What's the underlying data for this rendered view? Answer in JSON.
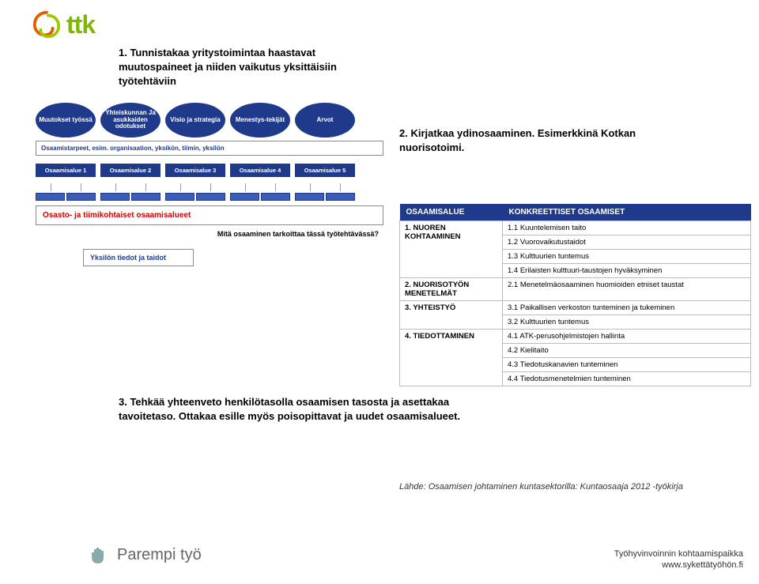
{
  "logo": {
    "text": "ttk",
    "swirl_colors": [
      "#e85a00",
      "#a0c800"
    ]
  },
  "steps": {
    "s1": "1. Tunnistakaa yritystoimintaa haastavat muutospaineet ja niiden vaikutus yksittäisiin työtehtäviin",
    "s2": "2. Kirjatkaa ydinosaaminen. Esimerkkinä Kotkan nuorisotoimi.",
    "s3": "3. Tehkää yhteenveto henkilötasolla osaamisen tasosta ja asettakaa tavoitetaso. Ottakaa esille myös poisopittavat ja uudet osaamisalueet."
  },
  "diagram": {
    "bg_color": "#ffffff",
    "oval_bg": "#1f3a8a",
    "oval_text": "#ffffff",
    "ovals": [
      "Muutokset työssä",
      "Yhteiskunnan Ja asukkaiden odotukset",
      "Visio ja strategia",
      "Menestys-tekijät",
      "Arvot"
    ],
    "cap_row": "Osaamistarpeet, esim. organisaation, yksikön, tiimin, yksilön",
    "mini_boxes": [
      "Osaamisalue 1",
      "Osaamisalue 2",
      "Osaamisalue 3",
      "Osaamisalue 4",
      "Osaamisalue 5"
    ],
    "team_box": "Osasto- ja tiimikohtaiset osaamisalueet",
    "q_text": "Mitä osaaminen tarkoittaa tässä työtehtävässä?",
    "indiv_box": "Yksilön tiedot ja taidot"
  },
  "table": {
    "header_bg": "#1f3a8a",
    "header_fg": "#ffffff",
    "border": "#bbbbbb",
    "headers": [
      "OSAAMISALUE",
      "KONKREETTISET OSAAMISET"
    ],
    "rows": [
      {
        "cat": "1. NUOREN KOHTAAMINEN",
        "items": [
          "1.1  Kuuntelemisen taito",
          "1.2  Vuorovaikutustaidot",
          "1.3  Kulttuurien tuntemus",
          "1.4  Erilaisten kulttuuri-taustojen hyväksyminen"
        ]
      },
      {
        "cat": "2. NUORISOTYÖN MENETELMÄT",
        "items": [
          "2.1  Menetelmäosaaminen huomioiden etniset taustat"
        ]
      },
      {
        "cat": "3. YHTEISTYÖ",
        "items": [
          "3.1  Paikallisen verkoston tunteminen ja tukeminen",
          "3.2  Kulttuurien tuntemus"
        ]
      },
      {
        "cat": "4. TIEDOTTAMINEN",
        "items": [
          "4.1  ATK-perusohjelmistojen hallinta",
          "4.2  Kielitaito",
          "4.3  Tiedotuskanavien tunteminen",
          "4.4  Tiedotusmenetelmien tunteminen"
        ]
      }
    ]
  },
  "source": "Lähde: Osaamisen johtaminen kuntasektorilla: Kuntaosaaja 2012 -työkirja",
  "footer": {
    "brand": "Parempi työ",
    "line1": "Työhyvinvoinnin kohtaamispaikka",
    "line2": "www.sykettätyöhön.fi"
  }
}
